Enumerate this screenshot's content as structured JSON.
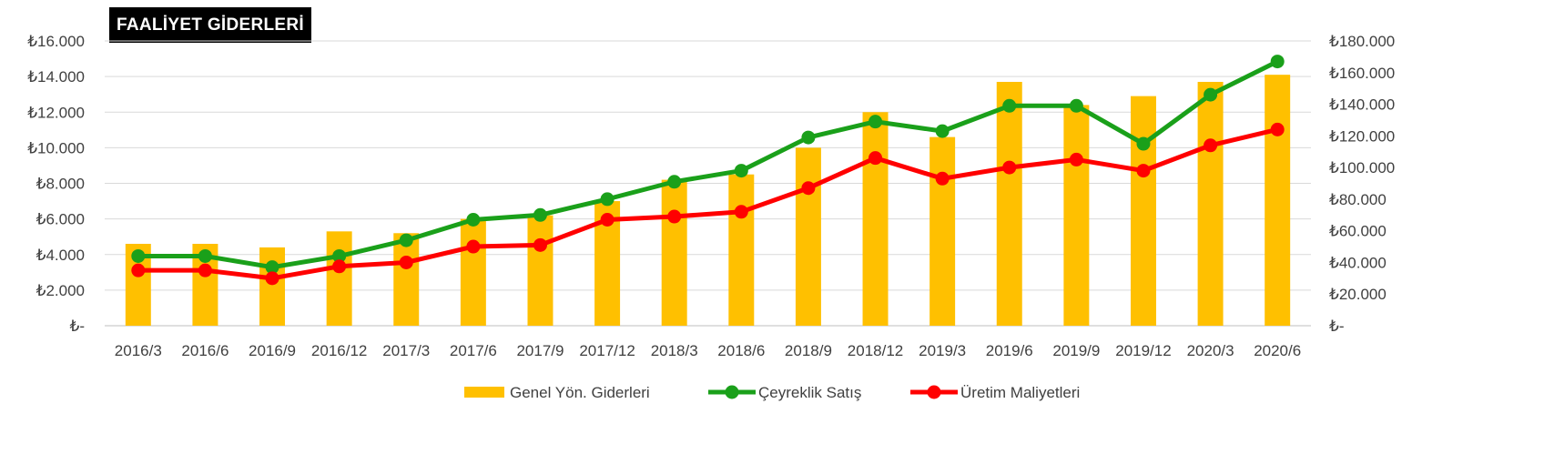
{
  "chart_data": {
    "type": "bar",
    "title": "FAALİYET GİDERLERİ",
    "categories": [
      "2016/3",
      "2016/6",
      "2016/9",
      "2016/12",
      "2017/3",
      "2017/6",
      "2017/9",
      "2017/12",
      "2018/3",
      "2018/6",
      "2018/9",
      "2018/12",
      "2019/3",
      "2019/6",
      "2019/9",
      "2019/12",
      "2020/3",
      "2020/6"
    ],
    "left_axis": {
      "ylim": [
        0,
        16000
      ],
      "ticks": [
        0,
        2000,
        4000,
        6000,
        8000,
        10000,
        12000,
        14000,
        16000
      ],
      "tick_labels": [
        "₺-",
        "₺2.000",
        "₺4.000",
        "₺6.000",
        "₺8.000",
        "₺10.000",
        "₺12.000",
        "₺14.000",
        "₺16.000"
      ]
    },
    "right_axis": {
      "ylim": [
        0,
        180000
      ],
      "ticks": [
        0,
        20000,
        40000,
        60000,
        80000,
        100000,
        120000,
        140000,
        160000,
        180000
      ],
      "tick_labels": [
        "₺-",
        "₺20.000",
        "₺40.000",
        "₺60.000",
        "₺80.000",
        "₺100.000",
        "₺120.000",
        "₺140.000",
        "₺160.000",
        "₺180.000"
      ]
    },
    "series": [
      {
        "name": "Genel Yön. Giderleri",
        "kind": "bar",
        "axis": "left",
        "color": "#FFC000",
        "values": [
          4600,
          4600,
          4400,
          5300,
          5200,
          6000,
          6200,
          7000,
          8200,
          8500,
          10000,
          12000,
          10600,
          13700,
          12400,
          12900,
          13700,
          14100
        ]
      },
      {
        "name": "Çeyreklik Satış",
        "kind": "line",
        "axis": "right",
        "color": "#1AA01A",
        "values": [
          44000,
          44000,
          37000,
          44000,
          54000,
          67000,
          70000,
          80000,
          91000,
          98000,
          119000,
          129000,
          123000,
          139000,
          139000,
          115000,
          146000,
          167000
        ]
      },
      {
        "name": "Üretim Maliyetleri",
        "kind": "line",
        "axis": "right",
        "color": "#FF0000",
        "values": [
          35000,
          35000,
          30000,
          37500,
          40000,
          50000,
          51000,
          67000,
          69000,
          72000,
          87000,
          106000,
          93000,
          100000,
          105000,
          98000,
          114000,
          124000
        ]
      }
    ],
    "grid": true,
    "legend_position": "bottom"
  }
}
